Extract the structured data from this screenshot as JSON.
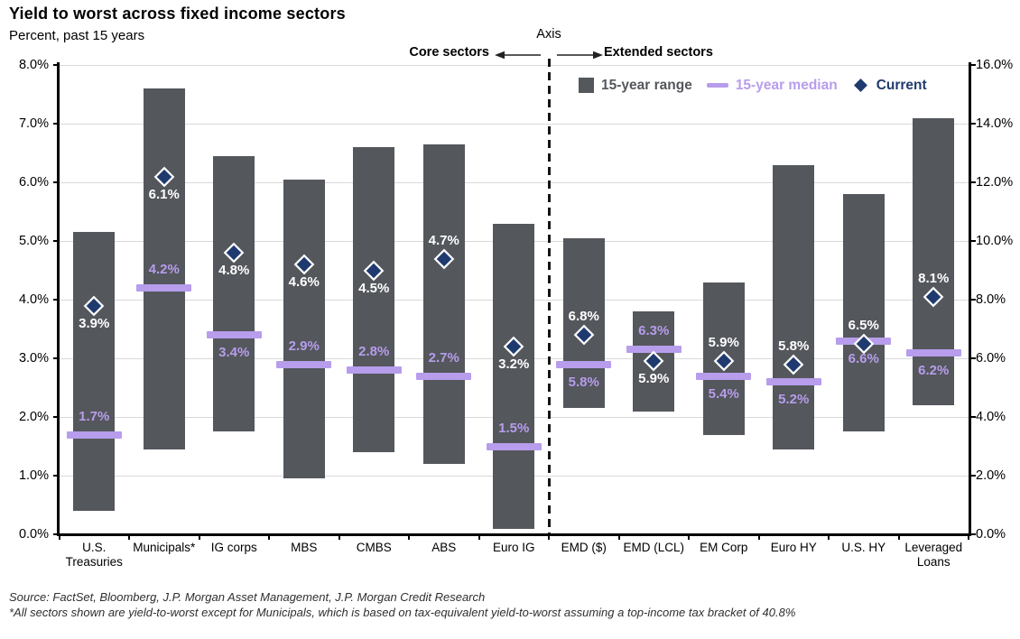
{
  "header": {
    "title": "Yield to worst across fixed income sectors",
    "subtitle": "Percent, past 15 years"
  },
  "axis_note": {
    "label": "Axis",
    "left_label": "Core sectors",
    "right_label": "Extended sectors"
  },
  "legend": {
    "range_label": "15-year range",
    "median_label": "15-year median",
    "current_label": "Current"
  },
  "footer": {
    "source_line": "Source: FactSet, Bloomberg, J.P. Morgan Asset Management, J.P. Morgan Credit Research",
    "footnote_line": "*All sectors shown are yield-to-worst except for Municipals, which is based on tax-equivalent yield-to-worst assuming a top-income tax bracket of 40.8%"
  },
  "chart_data": {
    "type": "bar",
    "subtype": "floating-range-bar-with-median-and-current",
    "title": "Yield to worst across fixed income sectors",
    "subtitle": "Percent, past 15 years",
    "grid": true,
    "legend_position": "top-right-inside",
    "colors": {
      "range": "#54575C",
      "median": "#B79DEC",
      "current": "#1F3A6E",
      "gridline": "#D9D9D9",
      "axis": "#000000",
      "current_value_text": "#FFFFFF",
      "median_value_text": "#B79DEC"
    },
    "left_axis": {
      "applies_to": "Core sectors",
      "min": 0,
      "max": 8,
      "step": 1,
      "tick_labels": [
        "8.0%",
        "7.0%",
        "6.0%",
        "5.0%",
        "4.0%",
        "3.0%",
        "2.0%",
        "1.0%",
        "0.0%"
      ]
    },
    "right_axis": {
      "applies_to": "Extended sectors",
      "min": 0,
      "max": 16,
      "step": 2,
      "tick_labels": [
        "16.0%",
        "14.0%",
        "12.0%",
        "10.0%",
        "8.0%",
        "6.0%",
        "4.0%",
        "2.0%",
        "0.0%"
      ]
    },
    "sectors": [
      {
        "label": "U.S. Treasuries",
        "label_lines": [
          "U.S.",
          "Treasuries"
        ],
        "axis": "left",
        "group": "Core sectors",
        "range_low": 0.4,
        "range_high": 5.15,
        "median": 1.7,
        "current": 3.9,
        "current_text": "3.9%",
        "median_text": "1.7%",
        "current_label_side": "below",
        "median_label_side": "above"
      },
      {
        "label": "Municipals*",
        "label_lines": [
          "Municipals*"
        ],
        "axis": "left",
        "group": "Core sectors",
        "range_low": 1.45,
        "range_high": 7.6,
        "median": 4.2,
        "current": 6.1,
        "current_text": "6.1%",
        "median_text": "4.2%",
        "current_label_side": "below",
        "median_label_side": "above"
      },
      {
        "label": "IG corps",
        "label_lines": [
          "IG corps"
        ],
        "axis": "left",
        "group": "Core sectors",
        "range_low": 1.75,
        "range_high": 6.45,
        "median": 3.4,
        "current": 4.8,
        "current_text": "4.8%",
        "median_text": "3.4%",
        "current_label_side": "below",
        "median_label_side": "below"
      },
      {
        "label": "MBS",
        "label_lines": [
          "MBS"
        ],
        "axis": "left",
        "group": "Core sectors",
        "range_low": 0.95,
        "range_high": 6.05,
        "median": 2.9,
        "current": 4.6,
        "current_text": "4.6%",
        "median_text": "2.9%",
        "current_label_side": "below",
        "median_label_side": "above"
      },
      {
        "label": "CMBS",
        "label_lines": [
          "CMBS"
        ],
        "axis": "left",
        "group": "Core sectors",
        "range_low": 1.4,
        "range_high": 6.6,
        "median": 2.8,
        "current": 4.5,
        "current_text": "4.5%",
        "median_text": "2.8%",
        "current_label_side": "below",
        "median_label_side": "above"
      },
      {
        "label": "ABS",
        "label_lines": [
          "ABS"
        ],
        "axis": "left",
        "group": "Core sectors",
        "range_low": 1.2,
        "range_high": 6.65,
        "median": 2.7,
        "current": 4.7,
        "current_text": "4.7%",
        "median_text": "2.7%",
        "current_label_side": "above",
        "median_label_side": "above"
      },
      {
        "label": "Euro IG",
        "label_lines": [
          "Euro IG"
        ],
        "axis": "left",
        "group": "Core sectors",
        "range_low": 0.1,
        "range_high": 5.3,
        "median": 1.5,
        "current": 3.2,
        "current_text": "3.2%",
        "median_text": "1.5%",
        "current_label_side": "below",
        "median_label_side": "above"
      },
      {
        "label": "EMD ($)",
        "label_lines": [
          "EMD ($)"
        ],
        "axis": "right",
        "group": "Extended sectors",
        "range_low": 4.3,
        "range_high": 10.1,
        "median": 5.8,
        "current": 6.8,
        "current_text": "6.8%",
        "median_text": "5.8%",
        "current_label_side": "above",
        "median_label_side": "below"
      },
      {
        "label": "EMD (LCL)",
        "label_lines": [
          "EMD (LCL)"
        ],
        "axis": "right",
        "group": "Extended sectors",
        "range_low": 4.2,
        "range_high": 7.6,
        "median": 6.3,
        "current": 5.9,
        "current_text": "5.9%",
        "median_text": "6.3%",
        "current_label_side": "below",
        "median_label_side": "above"
      },
      {
        "label": "EM Corp",
        "label_lines": [
          "EM Corp"
        ],
        "axis": "right",
        "group": "Extended sectors",
        "range_low": 3.4,
        "range_high": 8.6,
        "median": 5.4,
        "current": 5.9,
        "current_text": "5.9%",
        "median_text": "5.4%",
        "current_label_side": "above",
        "median_label_side": "below"
      },
      {
        "label": "Euro HY",
        "label_lines": [
          "Euro HY"
        ],
        "axis": "right",
        "group": "Extended sectors",
        "range_low": 2.9,
        "range_high": 12.6,
        "median": 5.2,
        "current": 5.8,
        "current_text": "5.8%",
        "median_text": "5.2%",
        "current_label_side": "above",
        "median_label_side": "below"
      },
      {
        "label": "U.S. HY",
        "label_lines": [
          "U.S. HY"
        ],
        "axis": "right",
        "group": "Extended sectors",
        "range_low": 3.5,
        "range_high": 11.6,
        "median": 6.6,
        "current": 6.5,
        "current_text": "6.5%",
        "median_text": "6.6%",
        "current_label_side": "above",
        "median_label_side": "below"
      },
      {
        "label": "Leveraged Loans",
        "label_lines": [
          "Leveraged",
          "Loans"
        ],
        "axis": "right",
        "group": "Extended sectors",
        "range_low": 4.4,
        "range_high": 14.2,
        "median": 6.2,
        "current": 8.1,
        "current_text": "8.1%",
        "median_text": "6.2%",
        "current_label_side": "above",
        "median_label_side": "below"
      }
    ]
  }
}
